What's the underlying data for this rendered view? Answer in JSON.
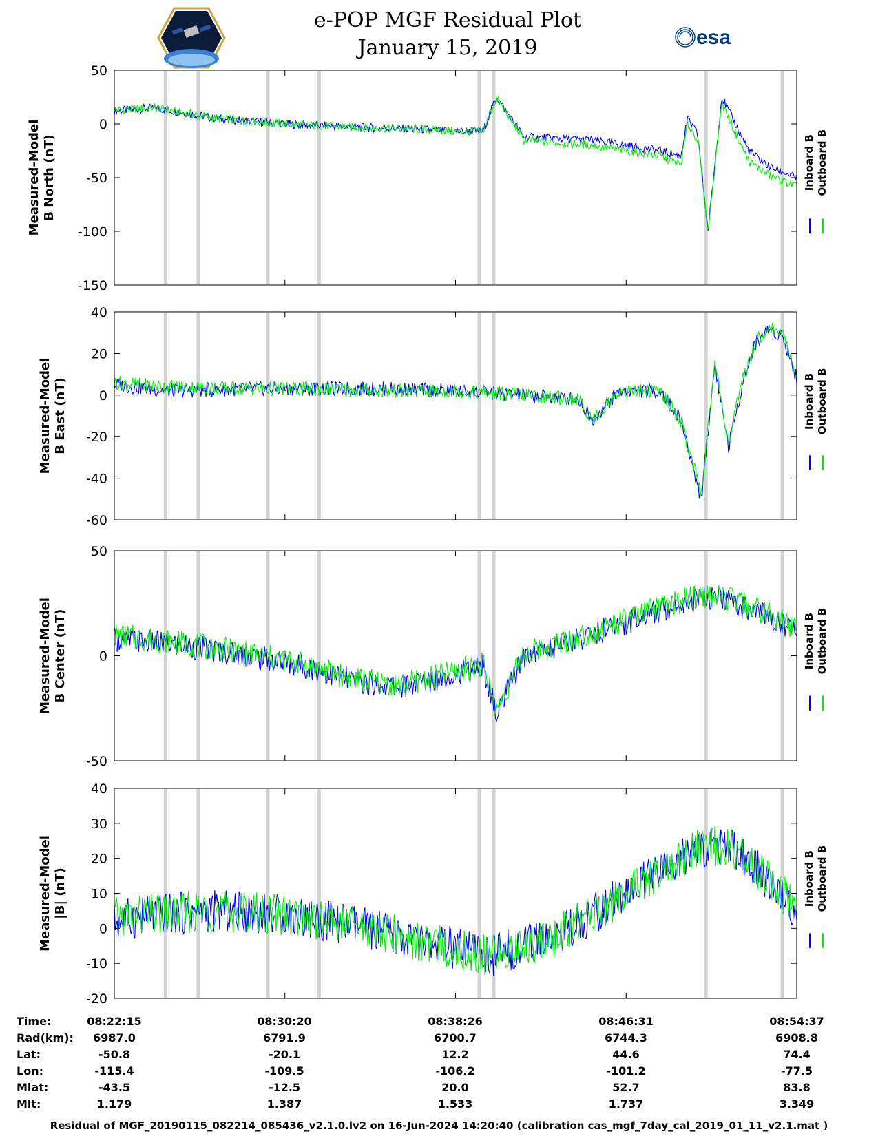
{
  "title": "e-POP MGF Residual Plot",
  "date": "January 15, 2019",
  "colors": {
    "inboard": "#0000ff",
    "outboard": "#00ee00",
    "gap": "#d3d3d3"
  },
  "logos": {
    "mission": "CASSIOPE mission patch",
    "agency": "esa"
  },
  "chart_data": [
    {
      "type": "line",
      "ylabel": [
        "Measured-Model",
        "B North (nT)"
      ],
      "ylim": [
        -150,
        50
      ],
      "yticks": [
        "50",
        "0",
        "-50",
        "-100",
        "-150"
      ],
      "legend": [
        "Inboard B",
        "Outboard B"
      ],
      "series": [
        {
          "name": "Inboard B",
          "color": "#0000ff",
          "x": [
            0,
            0.06,
            0.15,
            0.25,
            0.35,
            0.45,
            0.5,
            0.54,
            0.56,
            0.6,
            0.7,
            0.8,
            0.83,
            0.84,
            0.855,
            0.87,
            0.89,
            0.91,
            0.93,
            0.96,
            1.0
          ],
          "y": [
            12,
            15,
            5,
            0,
            -3,
            -5,
            -7,
            -7,
            25,
            -12,
            -15,
            -25,
            -30,
            5,
            -10,
            -100,
            25,
            0,
            -25,
            -40,
            -50
          ]
        },
        {
          "name": "Outboard B",
          "color": "#00ee00",
          "x": [
            0,
            0.06,
            0.15,
            0.25,
            0.35,
            0.45,
            0.5,
            0.54,
            0.56,
            0.6,
            0.7,
            0.8,
            0.83,
            0.84,
            0.855,
            0.87,
            0.89,
            0.91,
            0.93,
            0.96,
            1.0
          ],
          "y": [
            13,
            15,
            5,
            0,
            -3,
            -5,
            -7,
            -7,
            24,
            -15,
            -20,
            -30,
            -38,
            0,
            -15,
            -100,
            20,
            -8,
            -35,
            -48,
            -58
          ]
        }
      ]
    },
    {
      "type": "line",
      "ylabel": [
        "Measured-Model",
        "B East (nT)"
      ],
      "ylim": [
        -60,
        40
      ],
      "yticks": [
        "40",
        "20",
        "0",
        "-20",
        "-40",
        "-60"
      ],
      "legend": [
        "Inboard B",
        "Outboard B"
      ],
      "series": [
        {
          "name": "Inboard B",
          "color": "#0000ff",
          "x": [
            0,
            0.08,
            0.2,
            0.3,
            0.4,
            0.5,
            0.55,
            0.6,
            0.68,
            0.7,
            0.74,
            0.8,
            0.83,
            0.86,
            0.88,
            0.9,
            0.92,
            0.94,
            0.96,
            0.98,
            1.0
          ],
          "y": [
            5,
            2,
            3,
            3,
            3,
            2,
            1,
            0,
            -2,
            -12,
            2,
            2,
            -12,
            -50,
            15,
            -25,
            5,
            25,
            32,
            28,
            8
          ]
        },
        {
          "name": "Outboard B",
          "color": "#00ee00",
          "x": [
            0,
            0.08,
            0.2,
            0.3,
            0.4,
            0.5,
            0.55,
            0.6,
            0.68,
            0.7,
            0.74,
            0.8,
            0.83,
            0.86,
            0.88,
            0.9,
            0.92,
            0.94,
            0.96,
            0.98,
            1.0
          ],
          "y": [
            6,
            4,
            3,
            3,
            2,
            2,
            1,
            0,
            -2,
            -12,
            2,
            2,
            -12,
            -48,
            16,
            -23,
            6,
            26,
            33,
            29,
            9
          ]
        }
      ]
    },
    {
      "type": "line",
      "ylabel": [
        "Measured-Model",
        "B Center (nT)"
      ],
      "ylim": [
        -50,
        50
      ],
      "yticks": [
        "50",
        "0",
        "-50"
      ],
      "legend": [
        "Inboard B",
        "Outboard B"
      ],
      "series": [
        {
          "name": "Inboard B",
          "color": "#0000ff",
          "x": [
            0,
            0.1,
            0.2,
            0.28,
            0.35,
            0.42,
            0.48,
            0.54,
            0.56,
            0.6,
            0.7,
            0.8,
            0.86,
            0.9,
            0.95,
            1.0
          ],
          "y": [
            8,
            5,
            0,
            -5,
            -12,
            -15,
            -10,
            -5,
            -28,
            0,
            10,
            22,
            28,
            26,
            20,
            12
          ]
        },
        {
          "name": "Outboard B",
          "color": "#00ee00",
          "x": [
            0,
            0.1,
            0.2,
            0.28,
            0.35,
            0.42,
            0.48,
            0.54,
            0.56,
            0.6,
            0.7,
            0.8,
            0.86,
            0.9,
            0.95,
            1.0
          ],
          "y": [
            10,
            6,
            1,
            -4,
            -11,
            -14,
            -9,
            -4,
            -26,
            1,
            11,
            23,
            29,
            27,
            21,
            13
          ]
        }
      ]
    },
    {
      "type": "line",
      "ylabel": [
        "Measured-Model",
        "|B| (nT)"
      ],
      "ylim": [
        -20,
        40
      ],
      "yticks": [
        "40",
        "30",
        "20",
        "10",
        "0",
        "-10",
        "-20"
      ],
      "legend": [
        "Inboard B",
        "Outboard B"
      ],
      "series": [
        {
          "name": "Inboard B",
          "color": "#0000ff",
          "x": [
            0,
            0.06,
            0.15,
            0.25,
            0.35,
            0.45,
            0.55,
            0.65,
            0.75,
            0.85,
            0.9,
            0.95,
            1.0
          ],
          "y": [
            2,
            4,
            5,
            4,
            1,
            -4,
            -8,
            -2,
            10,
            22,
            24,
            15,
            5
          ]
        },
        {
          "name": "Outboard B",
          "color": "#00ee00",
          "x": [
            0,
            0.06,
            0.15,
            0.25,
            0.35,
            0.45,
            0.55,
            0.65,
            0.75,
            0.85,
            0.9,
            0.95,
            1.0
          ],
          "y": [
            3,
            4,
            5,
            4,
            1,
            -4,
            -8,
            -2,
            10,
            22,
            24,
            15,
            5
          ]
        }
      ]
    }
  ],
  "gaps": [
    0.075,
    0.123,
    0.225,
    0.3,
    0.535,
    0.556,
    0.867,
    0.979
  ],
  "ephemeris": {
    "labels": [
      "Time:",
      "Rad(km):",
      "Lat:",
      "Lon:",
      "Mlat:",
      "Mlt:"
    ],
    "columns": [
      [
        "08:22:15",
        "6987.0",
        "-50.8",
        "-115.4",
        "-43.5",
        "1.179"
      ],
      [
        "08:30:20",
        "6791.9",
        "-20.1",
        "-109.5",
        "-12.5",
        "1.387"
      ],
      [
        "08:38:26",
        "6700.7",
        "12.2",
        "-106.2",
        "20.0",
        "1.533"
      ],
      [
        "08:46:31",
        "6744.3",
        "44.6",
        "-101.2",
        "52.7",
        "1.737"
      ],
      [
        "08:54:37",
        "6908.8",
        "74.4",
        "-77.5",
        "83.8",
        "3.349"
      ]
    ]
  },
  "footer": "Residual of MGF_20190115_082214_085436_v2.1.0.lv2 on 16-Jun-2024 14:20:40 (calibration cas_mgf_7day_cal_2019_01_11_v2.1.mat )"
}
